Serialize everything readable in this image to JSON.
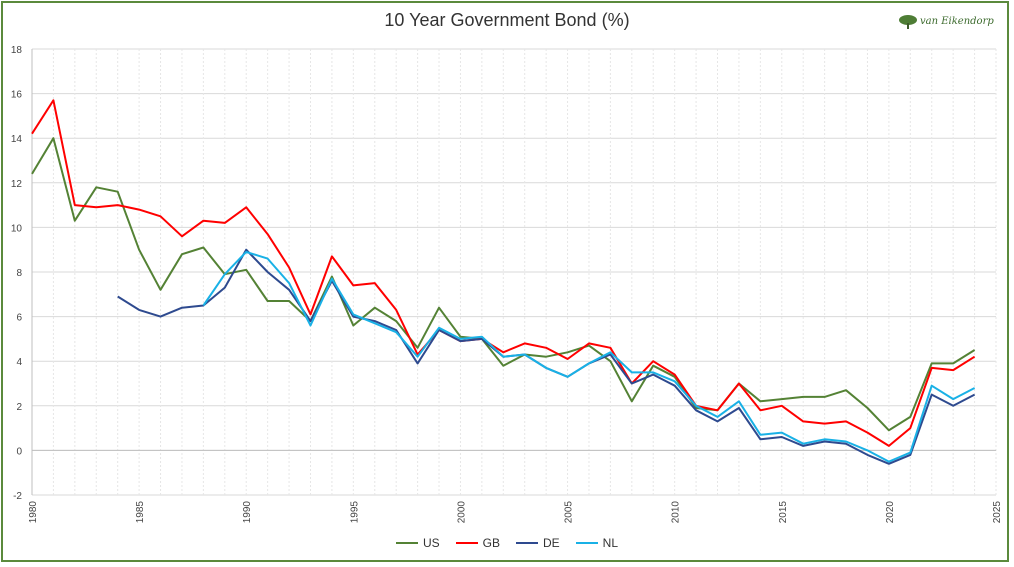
{
  "chart_data": {
    "type": "line",
    "title": "10 Year Government Bond (%)",
    "logo_text": "van Eikendorp",
    "xlim": [
      1980,
      2025
    ],
    "ylim": [
      -2,
      18
    ],
    "x_ticks": [
      1980,
      1985,
      1990,
      1995,
      2000,
      2005,
      2010,
      2015,
      2020,
      2025
    ],
    "y_ticks": [
      -2,
      0,
      2,
      4,
      6,
      8,
      10,
      12,
      14,
      16,
      18
    ],
    "grid": true,
    "legend_position": "bottom",
    "series": [
      {
        "name": "US",
        "color": "#548235",
        "x": [
          1980,
          1981,
          1982,
          1983,
          1984,
          1985,
          1986,
          1987,
          1988,
          1989,
          1990,
          1991,
          1992,
          1993,
          1994,
          1995,
          1996,
          1997,
          1998,
          1999,
          2000,
          2001,
          2002,
          2003,
          2004,
          2005,
          2006,
          2007,
          2008,
          2009,
          2010,
          2011,
          2012,
          2013,
          2014,
          2015,
          2016,
          2017,
          2018,
          2019,
          2020,
          2021,
          2022,
          2023,
          2024
        ],
        "values": [
          12.4,
          14.0,
          10.3,
          11.8,
          11.6,
          9.0,
          7.2,
          8.8,
          9.1,
          7.9,
          8.1,
          6.7,
          6.7,
          5.8,
          7.8,
          5.6,
          6.4,
          5.8,
          4.6,
          6.4,
          5.1,
          5.0,
          3.8,
          4.3,
          4.2,
          4.4,
          4.7,
          4.0,
          2.2,
          3.8,
          3.3,
          1.9,
          1.8,
          3.0,
          2.2,
          2.3,
          2.4,
          2.4,
          2.7,
          1.9,
          0.9,
          1.5,
          3.9,
          3.9,
          4.5
        ]
      },
      {
        "name": "GB",
        "color": "#ff0000",
        "x": [
          1980,
          1981,
          1982,
          1983,
          1984,
          1985,
          1986,
          1987,
          1988,
          1989,
          1990,
          1991,
          1992,
          1993,
          1994,
          1995,
          1996,
          1997,
          1998,
          1999,
          2000,
          2001,
          2002,
          2003,
          2004,
          2005,
          2006,
          2007,
          2008,
          2009,
          2010,
          2011,
          2012,
          2013,
          2014,
          2015,
          2016,
          2017,
          2018,
          2019,
          2020,
          2021,
          2022,
          2023,
          2024
        ],
        "values": [
          14.2,
          15.7,
          11.0,
          10.9,
          11.0,
          10.8,
          10.5,
          9.6,
          10.3,
          10.2,
          10.9,
          9.7,
          8.2,
          6.1,
          8.7,
          7.4,
          7.5,
          6.3,
          4.3,
          5.4,
          4.9,
          5.0,
          4.4,
          4.8,
          4.6,
          4.1,
          4.8,
          4.6,
          3.0,
          4.0,
          3.4,
          2.0,
          1.8,
          3.0,
          1.8,
          2.0,
          1.3,
          1.2,
          1.3,
          0.8,
          0.2,
          1.0,
          3.7,
          3.6,
          4.2
        ]
      },
      {
        "name": "DE",
        "color": "#2e4a8f",
        "x": [
          1984,
          1985,
          1986,
          1987,
          1988,
          1989,
          1990,
          1991,
          1992,
          1993,
          1994,
          1995,
          1996,
          1997,
          1998,
          1999,
          2000,
          2001,
          2002,
          2003,
          2004,
          2005,
          2006,
          2007,
          2008,
          2009,
          2010,
          2011,
          2012,
          2013,
          2014,
          2015,
          2016,
          2017,
          2018,
          2019,
          2020,
          2021,
          2022,
          2023,
          2024
        ],
        "values": [
          6.9,
          6.3,
          6.0,
          6.4,
          6.5,
          7.3,
          9.0,
          8.0,
          7.2,
          5.8,
          7.6,
          6.0,
          5.8,
          5.4,
          3.9,
          5.4,
          4.9,
          5.0,
          4.2,
          4.3,
          3.7,
          3.3,
          3.9,
          4.3,
          3.0,
          3.4,
          2.9,
          1.8,
          1.3,
          1.9,
          0.5,
          0.6,
          0.2,
          0.4,
          0.3,
          -0.2,
          -0.6,
          -0.2,
          2.5,
          2.0,
          2.5
        ]
      },
      {
        "name": "NL",
        "color": "#19b1e6",
        "x": [
          1988,
          1989,
          1990,
          1991,
          1992,
          1993,
          1994,
          1995,
          1996,
          1997,
          1998,
          1999,
          2000,
          2001,
          2002,
          2003,
          2004,
          2005,
          2006,
          2007,
          2008,
          2009,
          2010,
          2011,
          2012,
          2013,
          2014,
          2015,
          2016,
          2017,
          2018,
          2019,
          2020,
          2021,
          2022,
          2023,
          2024
        ],
        "values": [
          6.5,
          7.9,
          8.9,
          8.6,
          7.5,
          5.6,
          7.7,
          6.1,
          5.7,
          5.3,
          4.2,
          5.5,
          5.0,
          5.1,
          4.2,
          4.3,
          3.7,
          3.3,
          3.9,
          4.4,
          3.5,
          3.5,
          3.1,
          2.0,
          1.5,
          2.2,
          0.7,
          0.8,
          0.3,
          0.5,
          0.4,
          0.0,
          -0.5,
          -0.1,
          2.9,
          2.3,
          2.8
        ]
      }
    ]
  }
}
